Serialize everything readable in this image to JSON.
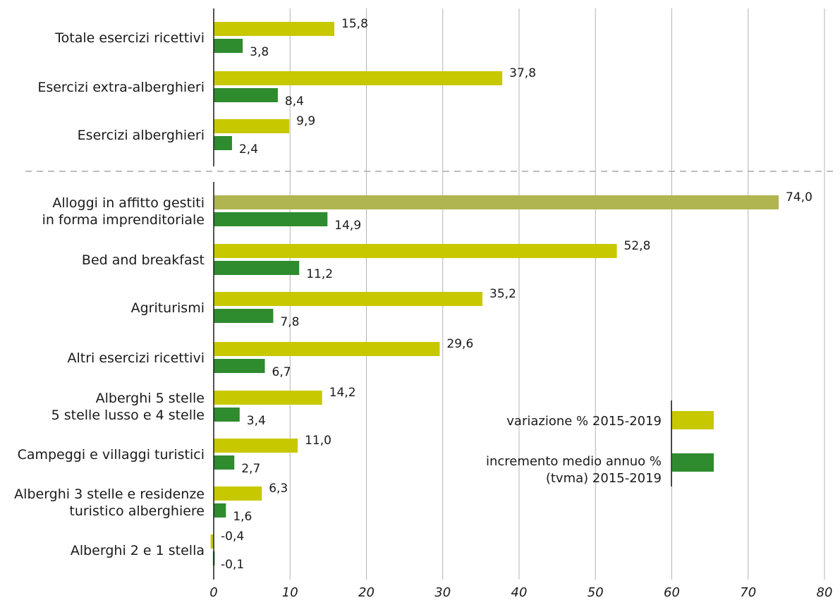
{
  "chart_data": {
    "type": "bar",
    "orientation": "horizontal",
    "xlim": [
      0,
      80
    ],
    "x_ticks": [
      "0",
      "10",
      "20",
      "30",
      "40",
      "50",
      "60",
      "70",
      "80"
    ],
    "grid": true,
    "legend_placement": "bottom-right",
    "colors": {
      "variazione": "#c8c800",
      "variazione_highlight": "#b0b54f",
      "incremento": "#2e8b2e"
    },
    "series": [
      {
        "name": "variazione % 2015-2019"
      },
      {
        "name": "incremento medio annuo % (tvma) 2015-2019"
      }
    ],
    "groups": [
      {
        "label": [
          "Totale esercizi ricettivi"
        ],
        "variazione": 15.8,
        "variazione_label": "15,8",
        "incremento": 3.8,
        "incremento_label": "3,8"
      },
      {
        "label": [
          "Esercizi extra-alberghieri"
        ],
        "variazione": 37.8,
        "variazione_label": "37,8",
        "incremento": 8.4,
        "incremento_label": "8,4"
      },
      {
        "label": [
          "Esercizi alberghieri"
        ],
        "variazione": 9.9,
        "variazione_label": "9,9",
        "incremento": 2.4,
        "incremento_label": "2,4"
      },
      {
        "label": [
          "Alloggi in affitto gestiti",
          "in forma imprenditoriale"
        ],
        "variazione": 74.0,
        "variazione_label": "74,0",
        "incremento": 14.9,
        "incremento_label": "14,9",
        "highlight": true
      },
      {
        "label": [
          "Bed and breakfast"
        ],
        "variazione": 52.8,
        "variazione_label": "52,8",
        "incremento": 11.2,
        "incremento_label": "11,2"
      },
      {
        "label": [
          "Agriturismi"
        ],
        "variazione": 35.2,
        "variazione_label": "35,2",
        "incremento": 7.8,
        "incremento_label": "7,8"
      },
      {
        "label": [
          "Altri esercizi ricettivi"
        ],
        "variazione": 29.6,
        "variazione_label": "29,6",
        "incremento": 6.7,
        "incremento_label": "6,7"
      },
      {
        "label": [
          "Alberghi 5 stelle",
          "5 stelle lusso e 4 stelle"
        ],
        "variazione": 14.2,
        "variazione_label": "14,2",
        "incremento": 3.4,
        "incremento_label": "3,4"
      },
      {
        "label": [
          "Campeggi e villaggi turistici"
        ],
        "variazione": 11.0,
        "variazione_label": "11,0",
        "incremento": 2.7,
        "incremento_label": "2,7"
      },
      {
        "label": [
          "Alberghi 3 stelle e residenze",
          "turistico alberghiere"
        ],
        "variazione": 6.3,
        "variazione_label": "6,3",
        "incremento": 1.6,
        "incremento_label": "1,6"
      },
      {
        "label": [
          "Alberghi 2 e 1 stella"
        ],
        "variazione": -0.4,
        "variazione_label": "-0,4",
        "incremento": -0.1,
        "incremento_label": "-0,1"
      }
    ]
  }
}
